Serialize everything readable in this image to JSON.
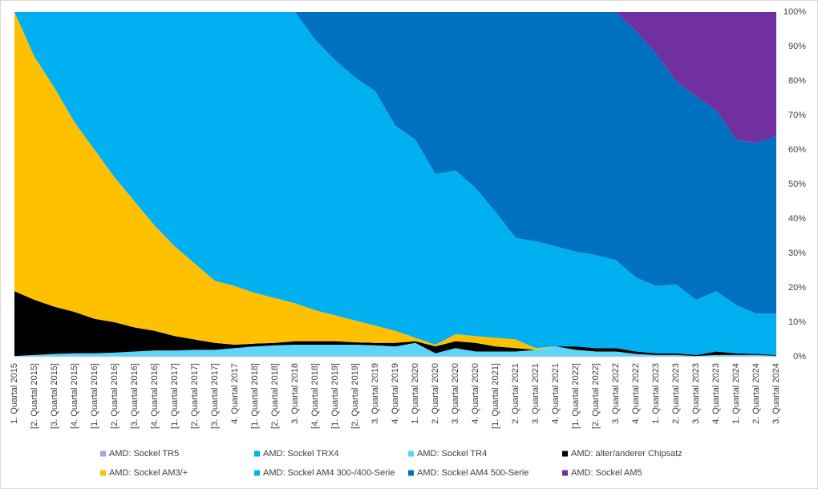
{
  "chart_data": {
    "type": "stacked_area",
    "categories": [
      "1. Quartal 2015",
      "[2. Quartal 2015]",
      "[3. Quartal 2015]",
      "[4. Quartal 2015]",
      "[1. Quartal 2016]",
      "[2. Quartal 2016]",
      "[3. Quartal 2016]",
      "[4. Quartal 2016]",
      "[1. Quartal 2017]",
      "[2. Quartal 2017]",
      "[3. Quartal 2017]",
      "4. Quartal 2017",
      "[1. Quartal 2018]",
      "[2. Quartal 2018]",
      "3. Quartal 2018",
      "[4. Quartal 2018]",
      "[1. Quartal 2019]",
      "[2. Quartal 2019]",
      "3. Quartal 2019",
      "4. Quartal 2019",
      "1. Quartal 2020",
      "2. Quartal 2020",
      "3. Quartal 2020",
      "4. Quartal 2020",
      "[1. Quartal 2021]",
      "2. Quartal 2021",
      "3. Quartal 2021",
      "4. Quartal 2021",
      "[1. Quartal 2022]",
      "[2. Quartal 2022]",
      "3. Quartal 2022",
      "4. Quartal 2022",
      "1. Quartal 2023",
      "2. Quartal 2023",
      "3. Quartal 2023",
      "4. Quartal 2023",
      "1. Quartal 2024",
      "2. Quartal 2024",
      "3. Quartal 2024"
    ],
    "series": [
      {
        "name": "AMD: Sockel TR5",
        "color": "#b39ddb",
        "values": [
          0,
          0,
          0,
          0,
          0,
          0,
          0,
          0,
          0,
          0,
          0,
          0,
          0,
          0,
          0,
          0,
          0,
          0,
          0,
          0,
          0,
          0,
          0,
          0,
          0,
          0,
          0,
          0,
          0,
          0,
          0,
          0,
          0,
          0,
          0,
          0,
          0,
          0,
          0
        ]
      },
      {
        "name": "AMD: Sockel TRX4",
        "color": "#00b0f0",
        "values": [
          0,
          0,
          0,
          0,
          0,
          0,
          0,
          0,
          0,
          0,
          0,
          0,
          0,
          0,
          0,
          0,
          0,
          0,
          0,
          0,
          0,
          0,
          0,
          0,
          0,
          0,
          0,
          0,
          0,
          0,
          0,
          0,
          0,
          0,
          0,
          0,
          0,
          0,
          0
        ]
      },
      {
        "name": "AMD: Sockel TR4",
        "color": "#5dd5f8",
        "values": [
          0.2,
          0.5,
          0.8,
          1,
          1,
          1.2,
          1.5,
          1.8,
          1.8,
          2,
          2,
          2.5,
          3,
          3.3,
          3.5,
          3.5,
          3.5,
          3.5,
          3.3,
          3,
          4,
          1,
          2.5,
          1.5,
          1.5,
          1.5,
          2,
          3,
          2,
          1.5,
          1.5,
          0.8,
          0.5,
          0.5,
          0.2,
          0.5,
          0.5,
          0.5,
          0.3
        ]
      },
      {
        "name": "AMD: alter/anderer Chipsatz",
        "color": "#000000",
        "values": [
          18.8,
          16,
          13.7,
          12,
          10,
          8.8,
          7,
          5.7,
          4.2,
          3,
          2,
          1,
          0.8,
          0.7,
          1,
          1,
          1,
          0.7,
          0.7,
          1,
          0.5,
          2,
          2,
          2.5,
          1.5,
          1,
          0,
          0,
          1,
          1,
          1,
          0.7,
          0.5,
          0.5,
          0.3,
          1,
          0.5,
          0.3,
          0.2
        ]
      },
      {
        "name": "AMD: Sockel AM3/+",
        "color": "#ffc000",
        "values": [
          81,
          70.5,
          63.5,
          55,
          49,
          42,
          36.5,
          30.5,
          26,
          22,
          18,
          17,
          14.7,
          13,
          11,
          9,
          7.5,
          6.3,
          5,
          3.5,
          1,
          0.5,
          2,
          2,
          2.5,
          2.5,
          0.5,
          0,
          0,
          0,
          0,
          0,
          0,
          0,
          0,
          0,
          0,
          0,
          0
        ]
      },
      {
        "name": "AMD: Sockel AM4 300-/400-Serie",
        "color": "#00b0f0",
        "values": [
          0,
          13,
          22,
          32,
          40,
          48,
          55,
          62,
          68,
          73,
          78,
          79.5,
          81.5,
          83,
          84.5,
          78.5,
          74,
          70.5,
          68,
          59.5,
          57.5,
          49.5,
          47.5,
          43,
          36.5,
          29.5,
          31,
          29,
          27.5,
          27,
          25.5,
          21.5,
          19.5,
          20,
          16,
          17.5,
          14,
          11.7,
          12
        ]
      },
      {
        "name": "AMD: Sockel AM4 500-Serie",
        "color": "#0070c0",
        "values": [
          0,
          0,
          0,
          0,
          0,
          0,
          0,
          0,
          0,
          0,
          0,
          0,
          0,
          0,
          0,
          8,
          14,
          19,
          23,
          33,
          37,
          47,
          46,
          51,
          58,
          65.5,
          66.5,
          68,
          69.5,
          70.5,
          72,
          71.5,
          67.5,
          59,
          59,
          52.5,
          48,
          49.5,
          51.5
        ]
      },
      {
        "name": "AMD: Sockel AM5",
        "color": "#7030a0",
        "values": [
          0,
          0,
          0,
          0,
          0,
          0,
          0,
          0,
          0,
          0,
          0,
          0,
          0,
          0,
          0,
          0,
          0,
          0,
          0,
          0,
          0,
          0,
          0,
          0,
          0,
          0,
          0,
          0,
          0,
          0,
          0,
          5.5,
          12,
          20,
          24.5,
          28.5,
          37,
          38,
          36
        ]
      }
    ],
    "ylim": [
      0,
      100
    ],
    "yticks": [
      {
        "value": 0,
        "label": "0%"
      },
      {
        "value": 10,
        "label": "10%"
      },
      {
        "value": 20,
        "label": "20%"
      },
      {
        "value": 30,
        "label": "30%"
      },
      {
        "value": 40,
        "label": "40%"
      },
      {
        "value": 50,
        "label": "50%"
      },
      {
        "value": 60,
        "label": "60%"
      },
      {
        "value": 70,
        "label": "70%"
      },
      {
        "value": 80,
        "label": "80%"
      },
      {
        "value": 90,
        "label": "90%"
      },
      {
        "value": 100,
        "label": "100%"
      }
    ],
    "grid": false
  }
}
